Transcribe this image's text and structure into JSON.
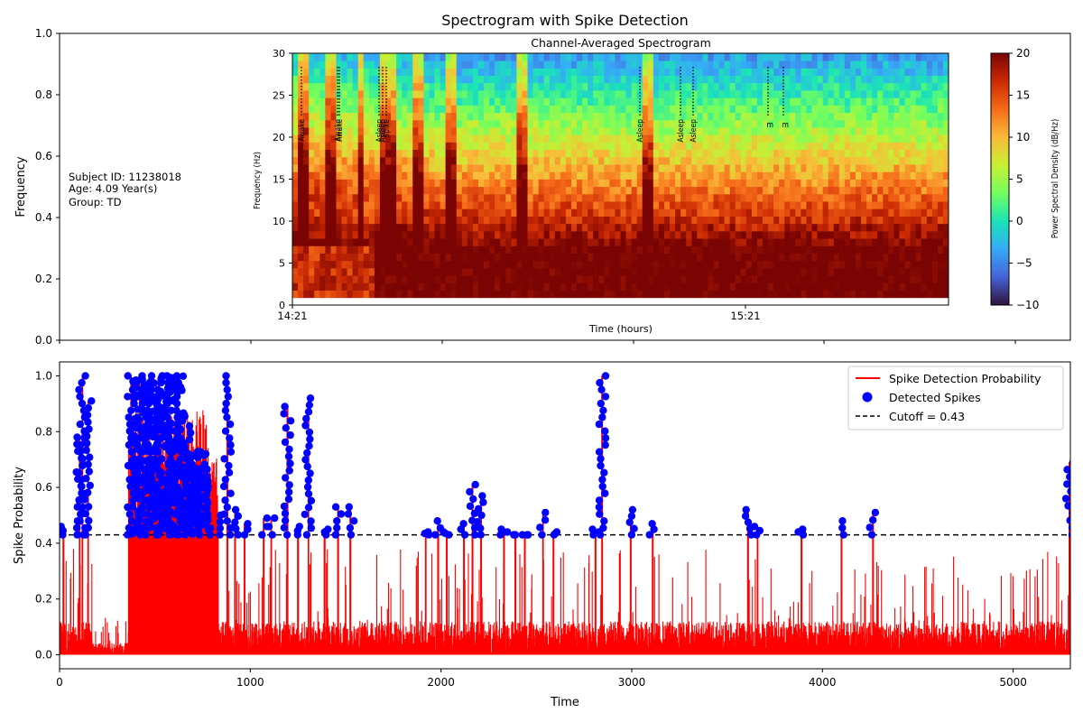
{
  "figure": {
    "title": "Spectrogram with Spike Detection"
  },
  "chart_data": [
    {
      "type": "heatmap",
      "panel": "top",
      "outer_axes": {
        "ylabel": "Frequency",
        "ylim": [
          0.0,
          1.0
        ],
        "yticks": [
          "0.0",
          "0.2",
          "0.4",
          "0.6",
          "0.8",
          "1.0"
        ]
      },
      "subject_info": [
        "Subject ID: 11238018",
        "Age: 4.09 Year(s)",
        "Group: TD"
      ],
      "spectrogram": {
        "title": "Channel-Averaged Spectrogram",
        "xlabel": "Time (hours)",
        "ylabel": "Frequency (Hz)",
        "xticks": [
          "14:21",
          "15:21"
        ],
        "ylim": [
          0,
          30
        ],
        "yticks": [
          "0",
          "5",
          "10",
          "15",
          "20",
          "25",
          "30"
        ],
        "colorbar": {
          "label": "Power Spectral Density (dB/Hz)",
          "range": [
            -10,
            20
          ],
          "ticks": [
            "20",
            "15",
            "10",
            "5",
            "0",
            "−5",
            "−10"
          ],
          "colors": [
            "#30123b",
            "#4662d7",
            "#36aaf9",
            "#1ae4b6",
            "#72fe5e",
            "#c8ef34",
            "#faba39",
            "#f66b19",
            "#cb2a04",
            "#7a0403"
          ]
        },
        "annotations": [
          {
            "label": "Awake"
          },
          {
            "label": "Awake"
          },
          {
            "label": "Awake"
          },
          {
            "label": "Asleep"
          },
          {
            "label": "Asleep"
          },
          {
            "label": "Spike"
          },
          {
            "label": "Asleep"
          },
          {
            "label": "Asleep"
          },
          {
            "label": "Asleep"
          },
          {
            "label": "m"
          },
          {
            "label": "m"
          }
        ]
      }
    },
    {
      "type": "line",
      "panel": "bottom",
      "xlabel": "Time",
      "ylabel": "Spike Probability",
      "xlim": [
        0,
        5300
      ],
      "ylim": [
        -0.05,
        1.05
      ],
      "xticks": [
        "0",
        "1000",
        "2000",
        "3000",
        "4000",
        "5000"
      ],
      "yticks": [
        "0.0",
        "0.2",
        "0.4",
        "0.6",
        "0.8",
        "1.0"
      ],
      "cutoff": 0.43,
      "legend_position": "top-right",
      "series": [
        {
          "name": "Spike Detection Probability",
          "color": "#ff0000",
          "kind": "line"
        },
        {
          "name": "Detected Spikes",
          "color": "#0000ff",
          "kind": "scatter"
        },
        {
          "name": "Cutoff = 0.43",
          "color": "#000000",
          "kind": "dashed"
        }
      ],
      "spike_clusters": [
        {
          "x": 20,
          "max": 0.46
        },
        {
          "x": 105,
          "max": 0.78
        },
        {
          "x": 120,
          "max": 1.0
        },
        {
          "x": 150,
          "max": 0.91
        },
        {
          "x": 375,
          "max": 1.0
        },
        {
          "x": 420,
          "max": 1.0
        },
        {
          "x": 470,
          "max": 1.0
        },
        {
          "x": 520,
          "max": 1.0
        },
        {
          "x": 570,
          "max": 1.0
        },
        {
          "x": 620,
          "max": 1.0
        },
        {
          "x": 670,
          "max": 0.82
        },
        {
          "x": 720,
          "max": 0.67
        },
        {
          "x": 780,
          "max": 0.55
        },
        {
          "x": 830,
          "max": 0.5
        },
        {
          "x": 880,
          "max": 1.0
        },
        {
          "x": 920,
          "max": 0.52
        },
        {
          "x": 970,
          "max": 0.47
        },
        {
          "x": 1070,
          "max": 0.49
        },
        {
          "x": 1110,
          "max": 0.49
        },
        {
          "x": 1195,
          "max": 0.89
        },
        {
          "x": 1250,
          "max": 0.46
        },
        {
          "x": 1305,
          "max": 0.92
        },
        {
          "x": 1390,
          "max": 0.45
        },
        {
          "x": 1460,
          "max": 0.53
        },
        {
          "x": 1525,
          "max": 0.53
        },
        {
          "x": 1920,
          "max": 0.44
        },
        {
          "x": 1985,
          "max": 0.48
        },
        {
          "x": 2030,
          "max": 0.44
        },
        {
          "x": 2120,
          "max": 0.47
        },
        {
          "x": 2165,
          "max": 0.61
        },
        {
          "x": 2210,
          "max": 0.57
        },
        {
          "x": 2330,
          "max": 0.45
        },
        {
          "x": 2390,
          "max": 0.43
        },
        {
          "x": 2440,
          "max": 0.43
        },
        {
          "x": 2535,
          "max": 0.51
        },
        {
          "x": 2590,
          "max": 0.44
        },
        {
          "x": 2810,
          "max": 0.45
        },
        {
          "x": 2845,
          "max": 1.0
        },
        {
          "x": 2995,
          "max": 0.52
        },
        {
          "x": 3110,
          "max": 0.47
        },
        {
          "x": 3610,
          "max": 0.52
        },
        {
          "x": 3660,
          "max": 0.46
        },
        {
          "x": 3890,
          "max": 0.45
        },
        {
          "x": 4100,
          "max": 0.48
        },
        {
          "x": 4265,
          "max": 0.51
        },
        {
          "x": 5295,
          "max": 0.69
        }
      ]
    }
  ]
}
